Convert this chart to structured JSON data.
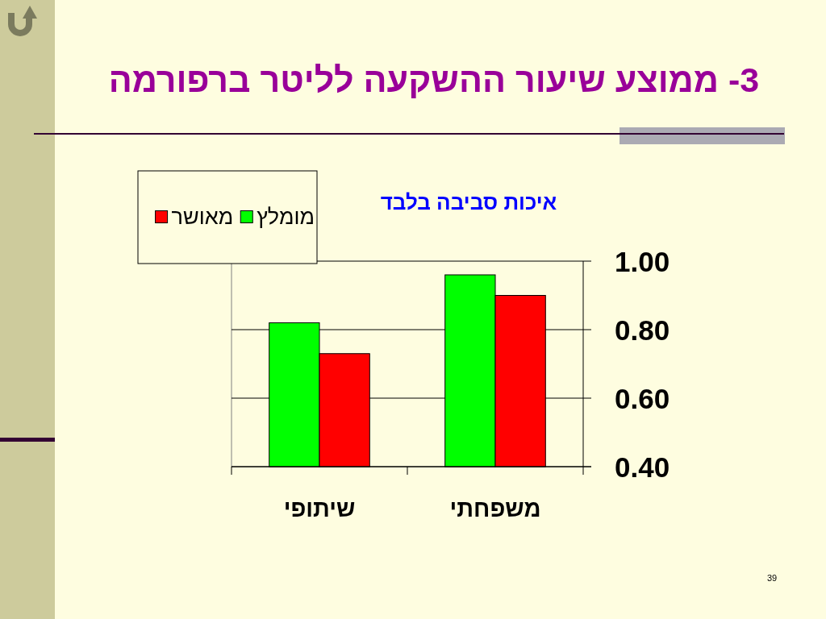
{
  "chart_data": {
    "type": "bar",
    "title": "3- ממוצע שיעור ההשקעה לליטר ברפורמה",
    "subtitle": "איכות סביבה בלבד",
    "categories": [
      "שיתופי",
      "משפחתי"
    ],
    "series": [
      {
        "name": "מומלץ",
        "color": "#00ff00",
        "values": [
          0.82,
          0.96
        ]
      },
      {
        "name": "מאושר",
        "color": "#ff0000",
        "values": [
          0.73,
          0.9
        ]
      }
    ],
    "ylim": [
      0.4,
      1.0
    ],
    "yticks": [
      {
        "value": 0.4,
        "label": "0.40"
      },
      {
        "value": 0.6,
        "label": "0.60"
      },
      {
        "value": 0.8,
        "label": "0.80"
      },
      {
        "value": 1.0,
        "label": "1.00"
      }
    ],
    "grid": "y",
    "legend": "top left",
    "annotations": [
      "39"
    ]
  }
}
